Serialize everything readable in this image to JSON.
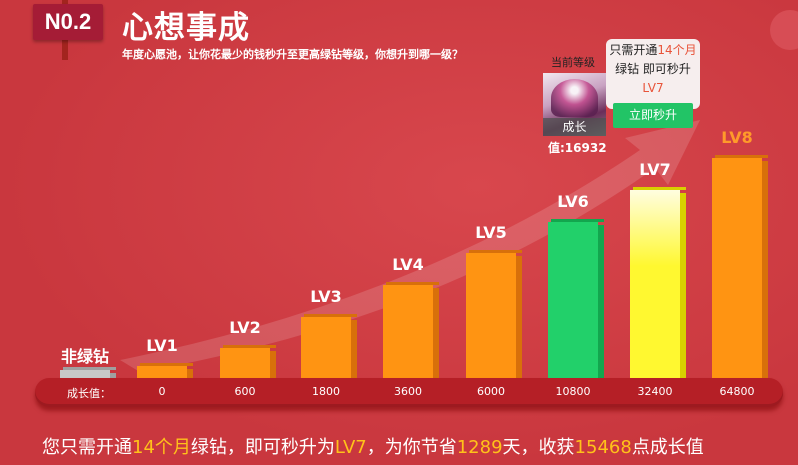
{
  "header": {
    "badge": "N0.2",
    "title": "心想事成",
    "subtitle": "年度心愿池，让你花最少的钱秒升至更高绿钻等级，你想升到哪一级？"
  },
  "current": {
    "label": "当前等级",
    "avatar_caption": "成长",
    "value_text": "值:16932"
  },
  "tooltip": {
    "p1": "只需开通",
    "p2": "14个月",
    "p3": "绿钻 即可秒升",
    "p4": "LV7",
    "button": "立即秒升"
  },
  "scale_label": "成长值：",
  "levels": [
    {
      "label": "非绿钻",
      "value": "",
      "color": "#c8c8c8",
      "side": "#a0a0a0",
      "label_color": "#ffffff"
    },
    {
      "label": "LV1",
      "value": "0",
      "color": "#ff9412",
      "side": "#d8700a",
      "label_color": "#ffffff"
    },
    {
      "label": "LV2",
      "value": "600",
      "color": "#ff9412",
      "side": "#d8700a",
      "label_color": "#ffffff"
    },
    {
      "label": "LV3",
      "value": "1800",
      "color": "#ff9412",
      "side": "#d8700a",
      "label_color": "#ffffff"
    },
    {
      "label": "LV4",
      "value": "3600",
      "color": "#ff9412",
      "side": "#d8700a",
      "label_color": "#ffffff"
    },
    {
      "label": "LV5",
      "value": "6000",
      "color": "#ff9412",
      "side": "#d8700a",
      "label_color": "#ffffff"
    },
    {
      "label": "LV6",
      "value": "10800",
      "color": "#22d06a",
      "side": "#13a64e",
      "label_color": "#ffffff"
    },
    {
      "label": "LV7",
      "value": "32400",
      "color": "#fff830",
      "side": "#d8d000",
      "label_color": "#ffffff"
    },
    {
      "label": "LV8",
      "value": "64800",
      "color": "#ff9412",
      "side": "#d8700a",
      "label_color": "#ff9a2a"
    }
  ],
  "footer": {
    "t1": "您只需开通",
    "t2": "14个月",
    "t3": "绿钻，即可秒升为",
    "t4": "LV7",
    "t5": "，为你节省",
    "t6": "1289",
    "t7": "天，收获",
    "t8": "15468",
    "t9": "点成长值"
  }
}
